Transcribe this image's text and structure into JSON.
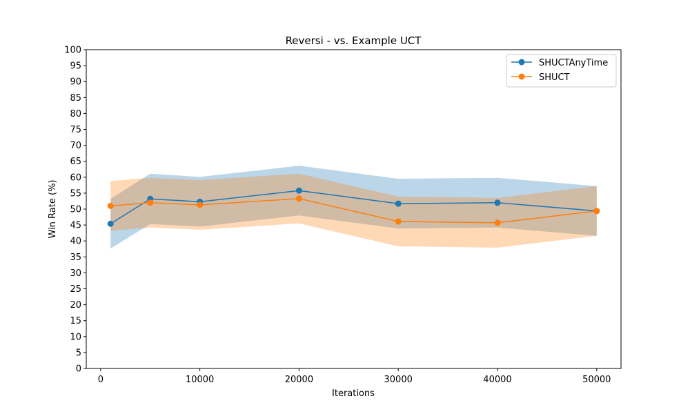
{
  "chart_data": {
    "type": "line",
    "title": "Reversi - vs. Example UCT",
    "xlabel": "Iterations",
    "ylabel": "Win Rate (%)",
    "x": [
      1000,
      5000,
      10000,
      20000,
      30000,
      40000,
      50000
    ],
    "xlim": [
      -1450,
      52450
    ],
    "ylim": [
      0,
      100
    ],
    "xticks": [
      0,
      10000,
      20000,
      30000,
      40000,
      50000
    ],
    "yticks": [
      0,
      5,
      10,
      15,
      20,
      25,
      30,
      35,
      40,
      45,
      50,
      55,
      60,
      65,
      70,
      75,
      80,
      85,
      90,
      95,
      100
    ],
    "grid": false,
    "legend_position": "top-right",
    "series": [
      {
        "name": "SHUCTAnyTime",
        "color": "#1f77b4",
        "values": [
          45.4,
          53.2,
          52.3,
          55.8,
          51.7,
          52.0,
          49.4
        ],
        "lower": [
          37.6,
          45.3,
          44.5,
          48.0,
          43.9,
          44.2,
          41.6
        ],
        "upper": [
          53.2,
          61.1,
          60.1,
          63.6,
          59.5,
          59.8,
          57.2
        ]
      },
      {
        "name": "SHUCT",
        "color": "#ff7f0e",
        "values": [
          51.0,
          52.0,
          51.3,
          53.3,
          46.1,
          45.7,
          49.4
        ],
        "lower": [
          43.2,
          44.2,
          43.5,
          45.5,
          38.3,
          37.9,
          41.6
        ],
        "upper": [
          58.8,
          59.8,
          59.1,
          61.1,
          53.9,
          53.5,
          57.2
        ]
      }
    ]
  }
}
